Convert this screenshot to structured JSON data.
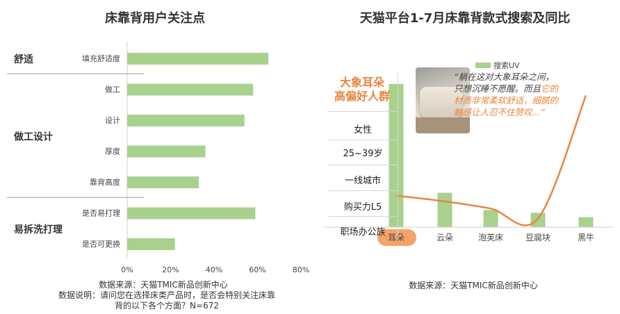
{
  "left": {
    "title": "床靠背用户关注点",
    "groups": [
      {
        "label": "舒适",
        "items": [
          0
        ]
      },
      {
        "label": "做工设计",
        "items": [
          1,
          2,
          3,
          4
        ]
      },
      {
        "label": "易拆洗打理",
        "items": [
          5,
          6
        ]
      }
    ],
    "footnote": {
      "source": "数据来源：天猫TMIC新品创新中心",
      "note_line1": "数据说明：请问您在选择床类产品时，是否会特别关注床靠",
      "note_line2": "背的以下各个方面？N=672"
    }
  },
  "right": {
    "title": "天猫平台1-7月床靠背款式搜索及同比",
    "legend": "搜索UV",
    "audience": {
      "title_line1": "大象耳朵",
      "title_line2": "高偏好人群",
      "rows": [
        "女性",
        "25~39岁",
        "一线城市",
        "购买力L5",
        "职场办公族"
      ]
    },
    "quote": {
      "text1": "“躺在这对大象耳朵之间，",
      "text2": "只想沉睡不愿醒。而且",
      "text2_hl": "它的",
      "text3": "材质非常柔软舒适，细腻的",
      "text4": "触感让人忍不住赞叹...”"
    },
    "footnote": "数据来源：天猫TMIC新品创新中心"
  },
  "colors": {
    "bar": "#a9d18e",
    "line": "#e8853b",
    "highlight": "#f4a46a",
    "group_label": "#333333"
  },
  "chart_data": [
    {
      "type": "bar",
      "orientation": "horizontal",
      "title": "床靠背用户关注点",
      "categories": [
        "填充舒适度",
        "做工",
        "设计",
        "厚度",
        "靠背高度",
        "是否易打理",
        "是否可更换"
      ],
      "values": [
        65,
        58,
        54,
        36,
        33,
        59,
        22
      ],
      "xticks": [
        "0%",
        "20%",
        "40%",
        "60%",
        "80%"
      ],
      "xlim": [
        0,
        80
      ],
      "grid": false
    },
    {
      "type": "bar",
      "title": "天猫平台1-7月床靠背款式搜索及同比",
      "categories": [
        "耳朵",
        "云朵",
        "泡芙床",
        "豆腐块",
        "黑牛"
      ],
      "series": [
        {
          "name": "搜索UV",
          "type": "bar",
          "values": [
            100,
            24,
            12,
            10,
            7
          ]
        },
        {
          "type": "line",
          "values": [
            22,
            18,
            13,
            6,
            92
          ]
        }
      ],
      "ylim": [
        0,
        110
      ],
      "legend": "top",
      "grid": false
    }
  ]
}
